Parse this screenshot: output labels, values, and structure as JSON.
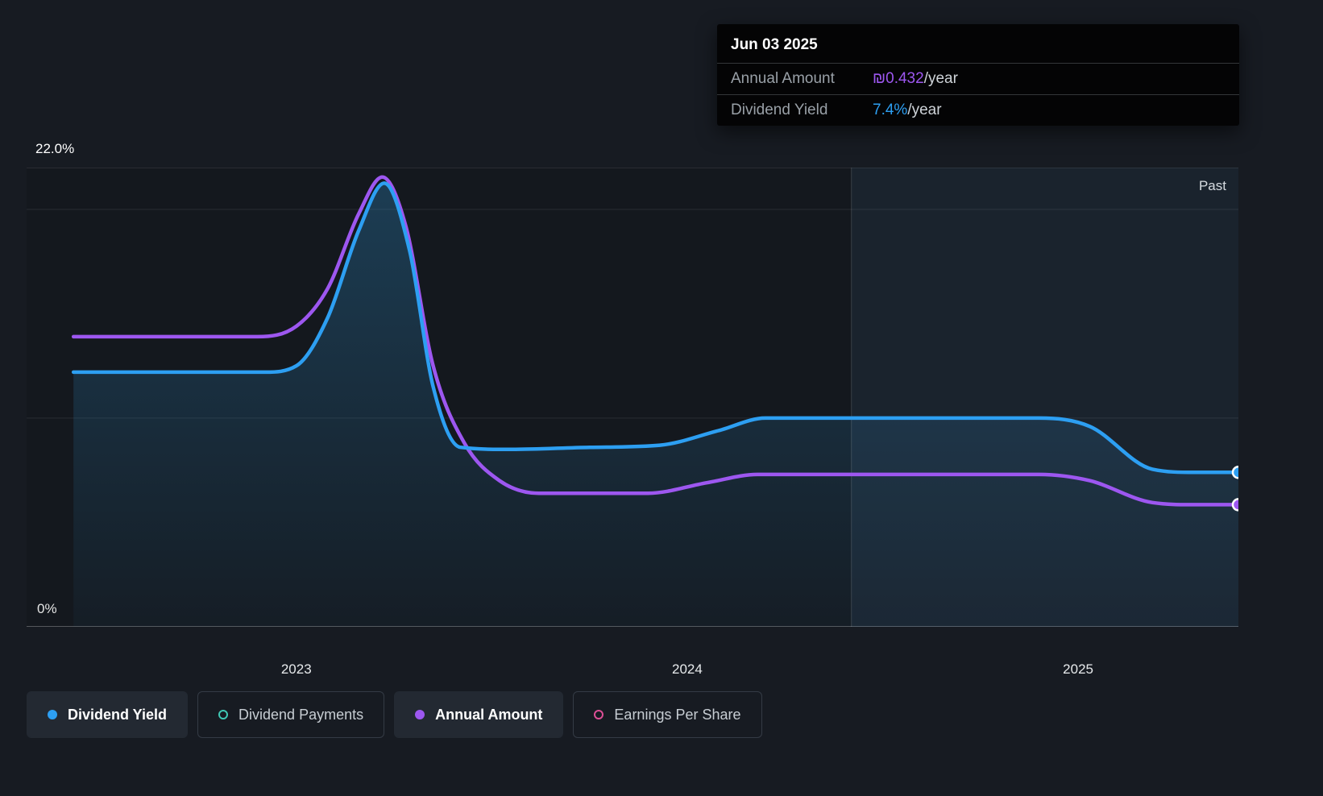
{
  "colors": {
    "background": "#171b22",
    "blue": "#2d9ff2",
    "purple": "#9d57f0",
    "teal": "#3fc8b4",
    "pink": "#dd4f96",
    "grid": "rgba(255,255,255,0.09)"
  },
  "tooltip": {
    "date": "Jun 03 2025",
    "rows": [
      {
        "label": "Annual Amount",
        "value": "₪0.432",
        "suffix": "/year",
        "color": "#9d57f0"
      },
      {
        "label": "Dividend Yield",
        "value": "7.4%",
        "suffix": "/year",
        "color": "#2d9ff2"
      }
    ]
  },
  "chart": {
    "past_label": "Past",
    "y_axis": {
      "top_label": "22.0%",
      "bottom_label": "0%"
    },
    "x_labels": [
      "2023",
      "2024",
      "2025"
    ]
  },
  "legend": {
    "items": [
      {
        "label": "Dividend Yield",
        "marker": "filled",
        "color": "#2d9ff2",
        "active": true
      },
      {
        "label": "Dividend Payments",
        "marker": "ring",
        "color": "#3fc8b4",
        "active": false
      },
      {
        "label": "Annual Amount",
        "marker": "filled",
        "color": "#9d57f0",
        "active": true
      },
      {
        "label": "Earnings Per Share",
        "marker": "ring",
        "color": "#dd4f96",
        "active": false
      }
    ]
  },
  "chart_data": {
    "type": "line",
    "title": "Dividend history (yield and annual amount over time)",
    "x_range": [
      2022.31,
      2025.41
    ],
    "y_range": [
      0,
      22
    ],
    "y_unit": "%",
    "y_gridlines": [
      0,
      10,
      20,
      22
    ],
    "y_axis_labels": {
      "top": "22.0%",
      "bottom": "0%"
    },
    "x_ticks": [
      2023,
      2024,
      2025
    ],
    "divider_x": 2024.42,
    "annotations": [
      "Past"
    ],
    "series": [
      {
        "name": "Dividend Yield",
        "color": "#2d9ff2",
        "area": true,
        "unit": "%",
        "latest": "7.4%/year",
        "points": [
          [
            2022.43,
            12.2
          ],
          [
            2022.92,
            12.2
          ],
          [
            2023.0,
            12.5
          ],
          [
            2023.08,
            14.8
          ],
          [
            2023.16,
            19.0
          ],
          [
            2023.225,
            21.25
          ],
          [
            2023.29,
            18.0
          ],
          [
            2023.35,
            11.5
          ],
          [
            2023.42,
            8.6
          ],
          [
            2023.55,
            8.5
          ],
          [
            2023.75,
            8.6
          ],
          [
            2023.93,
            8.7
          ],
          [
            2024.08,
            9.4
          ],
          [
            2024.2,
            10.0
          ],
          [
            2024.9,
            10.0
          ],
          [
            2025.03,
            9.6
          ],
          [
            2025.19,
            7.55
          ],
          [
            2025.3,
            7.4
          ],
          [
            2025.41,
            7.4
          ]
        ]
      },
      {
        "name": "Annual Amount",
        "color": "#9d57f0",
        "area": false,
        "unit": "₪/year",
        "latest": "₪0.432/year",
        "note": "plotted on shared chart axis; latest value ₪0.432/year",
        "points": [
          [
            2022.43,
            13.9
          ],
          [
            2022.9,
            13.9
          ],
          [
            2023.0,
            14.4
          ],
          [
            2023.08,
            16.2
          ],
          [
            2023.16,
            19.8
          ],
          [
            2023.22,
            21.55
          ],
          [
            2023.28,
            19.2
          ],
          [
            2023.35,
            12.5
          ],
          [
            2023.43,
            8.8
          ],
          [
            2023.52,
            7.0
          ],
          [
            2023.62,
            6.4
          ],
          [
            2023.9,
            6.4
          ],
          [
            2024.05,
            6.9
          ],
          [
            2024.18,
            7.3
          ],
          [
            2024.9,
            7.3
          ],
          [
            2025.03,
            7.0
          ],
          [
            2025.19,
            5.95
          ],
          [
            2025.3,
            5.85
          ],
          [
            2025.41,
            5.85
          ]
        ]
      }
    ]
  }
}
